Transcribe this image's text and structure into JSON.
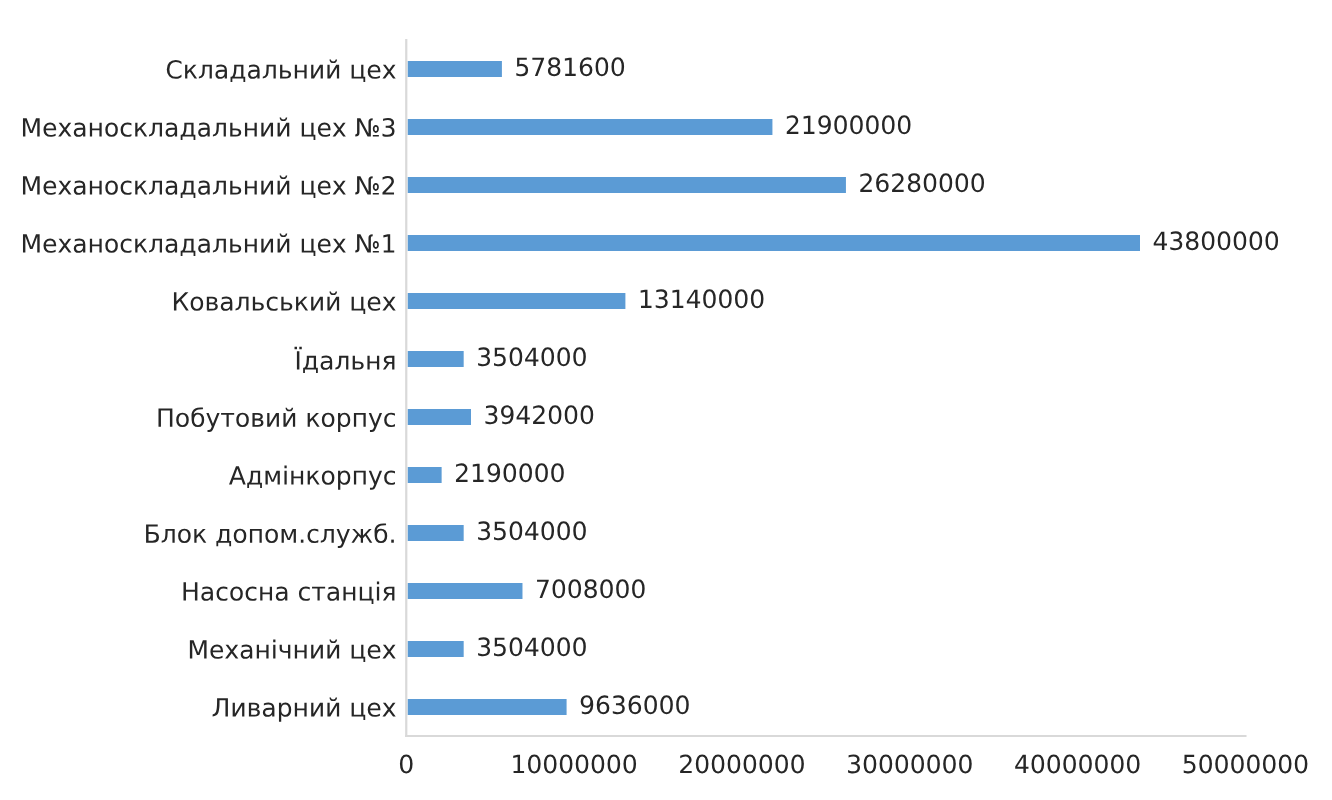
{
  "chart_data": {
    "type": "bar",
    "orientation": "horizontal",
    "categories": [
      "Складальний цех",
      "Механоскладальний цех №3",
      "Механоскладальний цех №2",
      "Механоскладальний цех №1",
      "Ковальський цех",
      "Їдальня",
      "Побутовий корпус",
      "Адмінкорпус",
      "Блок допом.служб.",
      "Насосна станція",
      "Механічний цех",
      "Ливарний цех"
    ],
    "values": [
      5781600,
      21900000,
      26280000,
      43800000,
      13140000,
      3504000,
      3942000,
      2190000,
      3504000,
      7008000,
      3504000,
      9636000
    ],
    "color": "#5b9bd5",
    "data_labels": true,
    "xlim": [
      0,
      50000000
    ],
    "xticks": [
      0,
      10000000,
      20000000,
      30000000,
      40000000,
      50000000
    ],
    "grid": false,
    "legend": false
  }
}
